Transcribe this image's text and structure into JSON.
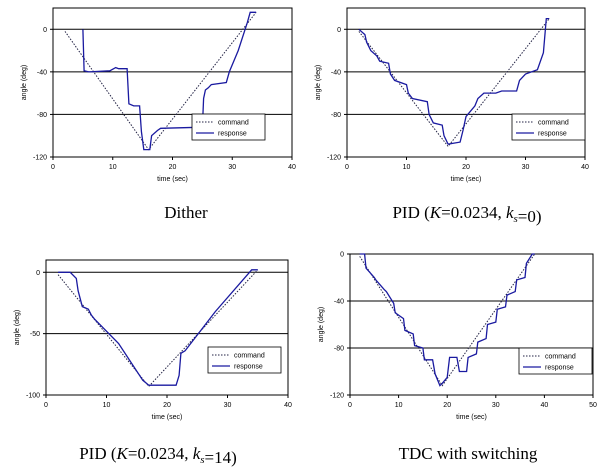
{
  "chart_data": [
    {
      "type": "line",
      "xlabel": "time (sec)",
      "ylabel": "angle (deg)",
      "xlim": [
        0,
        40
      ],
      "ylim": [
        -120,
        20
      ],
      "xticks": [
        0,
        10,
        20,
        30,
        40
      ],
      "yticks": [
        0,
        -40,
        -80,
        -120
      ],
      "grid_y": [
        0,
        -40,
        -80
      ],
      "legend": "bottom-right",
      "caption": [
        {
          "text": "Dither",
          "italic": false
        }
      ],
      "series": [
        {
          "name": "command",
          "style": "dotted",
          "x": [
            2,
            16,
            34
          ],
          "y": [
            -2,
            -113,
            16
          ]
        },
        {
          "name": "response",
          "style": "solid",
          "x": [
            5,
            5.2,
            6,
            9.5,
            10.5,
            11,
            12.4,
            12.7,
            13.5,
            14.5,
            14.8,
            15.2,
            16.2,
            16.5,
            17.5,
            18,
            25,
            25.2,
            25.5,
            26,
            26.5,
            29,
            29.5,
            31,
            32.5,
            33,
            34
          ],
          "y": [
            0,
            -39,
            -40,
            -39,
            -36,
            -37,
            -37,
            -70,
            -72,
            -72,
            -96,
            -113,
            -113,
            -100,
            -95,
            -93,
            -92,
            -65,
            -57,
            -55,
            -52,
            -50,
            -40,
            -20,
            6,
            16,
            16
          ]
        }
      ]
    },
    {
      "type": "line",
      "xlabel": "time (sec)",
      "ylabel": "angle (deg)",
      "xlim": [
        0,
        40
      ],
      "ylim": [
        -120,
        20
      ],
      "xticks": [
        0,
        10,
        20,
        30,
        40
      ],
      "yticks": [
        0,
        -40,
        -80,
        -120
      ],
      "grid_y": [
        0,
        -40,
        -80
      ],
      "legend": "bottom-right",
      "caption": [
        {
          "text": "PID (",
          "italic": false
        },
        {
          "text": "K",
          "italic": true
        },
        {
          "text": "=0.0234, ",
          "italic": false
        },
        {
          "text": "k",
          "italic": true
        },
        {
          "text": "s",
          "italic": true,
          "sub": true
        },
        {
          "text": "=0)",
          "italic": false
        }
      ],
      "series": [
        {
          "name": "command",
          "style": "dotted",
          "x": [
            2,
            17,
            34
          ],
          "y": [
            -2,
            -110,
            10
          ]
        },
        {
          "name": "response",
          "style": "solid",
          "x": [
            2,
            3,
            3.3,
            4,
            5,
            5.5,
            7,
            7.3,
            8,
            10,
            10.3,
            11,
            13.5,
            13.8,
            14.5,
            16,
            16.3,
            17,
            19,
            19.5,
            20,
            21.5,
            22,
            23,
            25,
            26,
            28.5,
            29,
            30,
            32,
            33,
            33.5,
            34
          ],
          "y": [
            0,
            -5,
            -12,
            -20,
            -25,
            -30,
            -32,
            -42,
            -48,
            -52,
            -60,
            -65,
            -68,
            -80,
            -88,
            -90,
            -100,
            -108,
            -106,
            -95,
            -82,
            -72,
            -65,
            -60,
            -60,
            -58,
            -58,
            -48,
            -42,
            -38,
            -22,
            10,
            10
          ]
        }
      ]
    },
    {
      "type": "line",
      "xlabel": "time (sec)",
      "ylabel": "angle (deg)",
      "xlim": [
        0,
        40
      ],
      "ylim": [
        -100,
        10
      ],
      "xticks": [
        0,
        10,
        20,
        30,
        40
      ],
      "yticks": [
        0,
        -50,
        -100
      ],
      "grid_y": [
        0,
        -50
      ],
      "legend": "bottom-right",
      "caption": [
        {
          "text": "PID (",
          "italic": false
        },
        {
          "text": "K",
          "italic": true
        },
        {
          "text": "=0.0234, ",
          "italic": false
        },
        {
          "text": "k",
          "italic": true
        },
        {
          "text": "s",
          "italic": true,
          "sub": true
        },
        {
          "text": "=14)",
          "italic": false
        }
      ],
      "series": [
        {
          "name": "command",
          "style": "dotted",
          "x": [
            2,
            17,
            35
          ],
          "y": [
            -2,
            -93,
            2
          ]
        },
        {
          "name": "response",
          "style": "solid",
          "x": [
            2,
            4,
            5,
            5.3,
            6,
            7,
            7.5,
            8,
            12,
            16,
            17,
            19,
            21.5,
            22,
            22.3,
            23,
            28,
            34,
            35
          ],
          "y": [
            0,
            0,
            -5,
            -15,
            -28,
            -30,
            -35,
            -38,
            -58,
            -88,
            -92,
            -92,
            -92,
            -84,
            -66,
            -64,
            -32,
            2,
            2
          ]
        }
      ]
    },
    {
      "type": "line",
      "xlabel": "time (sec)",
      "ylabel": "angle (deg)",
      "xlim": [
        0,
        50
      ],
      "ylim": [
        -120,
        0
      ],
      "xticks": [
        0,
        10,
        20,
        30,
        40,
        50
      ],
      "yticks": [
        0,
        -40,
        -80,
        -120
      ],
      "grid_y": [
        -40,
        -80
      ],
      "legend": "bottom-right",
      "caption": [
        {
          "text": "TDC with switching",
          "italic": false
        }
      ],
      "series": [
        {
          "name": "command",
          "style": "dotted",
          "x": [
            2,
            19,
            38
          ],
          "y": [
            -2,
            -112,
            0
          ]
        },
        {
          "name": "response",
          "style": "solid",
          "x": [
            2,
            3,
            3.3,
            5,
            5.3,
            7,
            7.5,
            9,
            9.3,
            11,
            11.3,
            13,
            13.3,
            15,
            15.3,
            17,
            17.5,
            18.5,
            19,
            20,
            20.5,
            22,
            22.5,
            24,
            24.3,
            26,
            26.3,
            28,
            28.3,
            30,
            30.3,
            32,
            32.3,
            34,
            34.3,
            36,
            36.3,
            37.5,
            38
          ],
          "y": [
            0,
            0,
            -12,
            -20,
            -22,
            -30,
            -32,
            -42,
            -50,
            -55,
            -65,
            -68,
            -78,
            -80,
            -90,
            -90,
            -102,
            -112,
            -110,
            -105,
            -88,
            -88,
            -100,
            -100,
            -88,
            -85,
            -75,
            -72,
            -60,
            -58,
            -47,
            -45,
            -35,
            -32,
            -22,
            -20,
            -8,
            0,
            0
          ]
        }
      ]
    }
  ]
}
